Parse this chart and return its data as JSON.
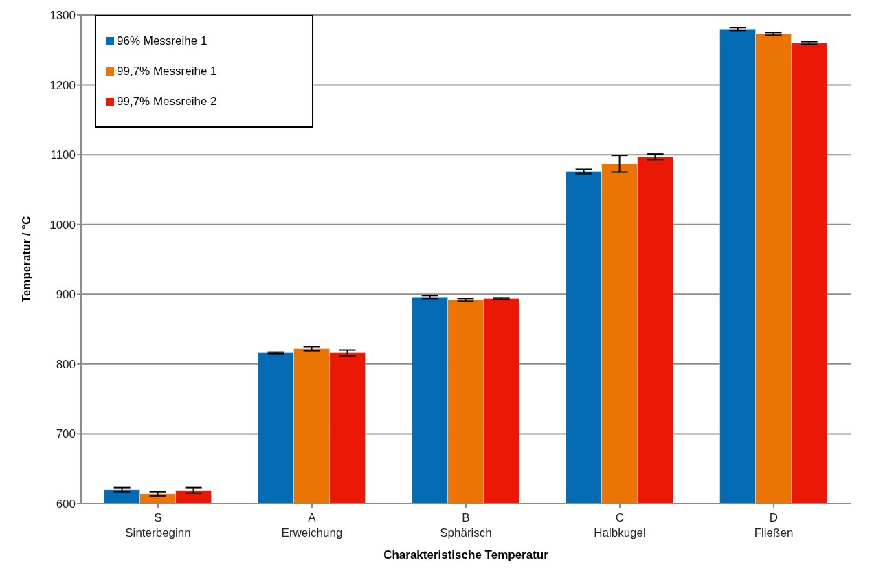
{
  "chart_data": {
    "type": "bar",
    "xlabel": "Charakteristische Temperatur",
    "ylabel": "Temperatur / °C",
    "categories": [
      "S\nSinterbeginn",
      "A\nErweichung",
      "B\nSphärisch",
      "C\nHalbkugel",
      "D\nFließen"
    ],
    "series": [
      {
        "name": "96% Messreihe 1",
        "color": "#036ab4",
        "values": [
          620,
          816,
          896,
          1076,
          1280
        ],
        "errors": [
          3,
          1,
          2,
          3,
          2
        ]
      },
      {
        "name": "99,7% Messreihe 1",
        "color": "#ec7403",
        "values": [
          614,
          822,
          892,
          1087,
          1273
        ],
        "errors": [
          3,
          3,
          2,
          12,
          2
        ]
      },
      {
        "name": "99,7% Messreihe 2",
        "color": "#eb1806",
        "values": [
          619,
          816,
          894,
          1097,
          1260
        ],
        "errors": [
          4,
          4,
          1,
          4,
          2
        ]
      }
    ],
    "ylim": [
      600,
      1300
    ],
    "yticks": [
      600,
      700,
      800,
      900,
      1000,
      1100,
      1200,
      1300
    ],
    "grid": "y",
    "legend": "top left"
  }
}
